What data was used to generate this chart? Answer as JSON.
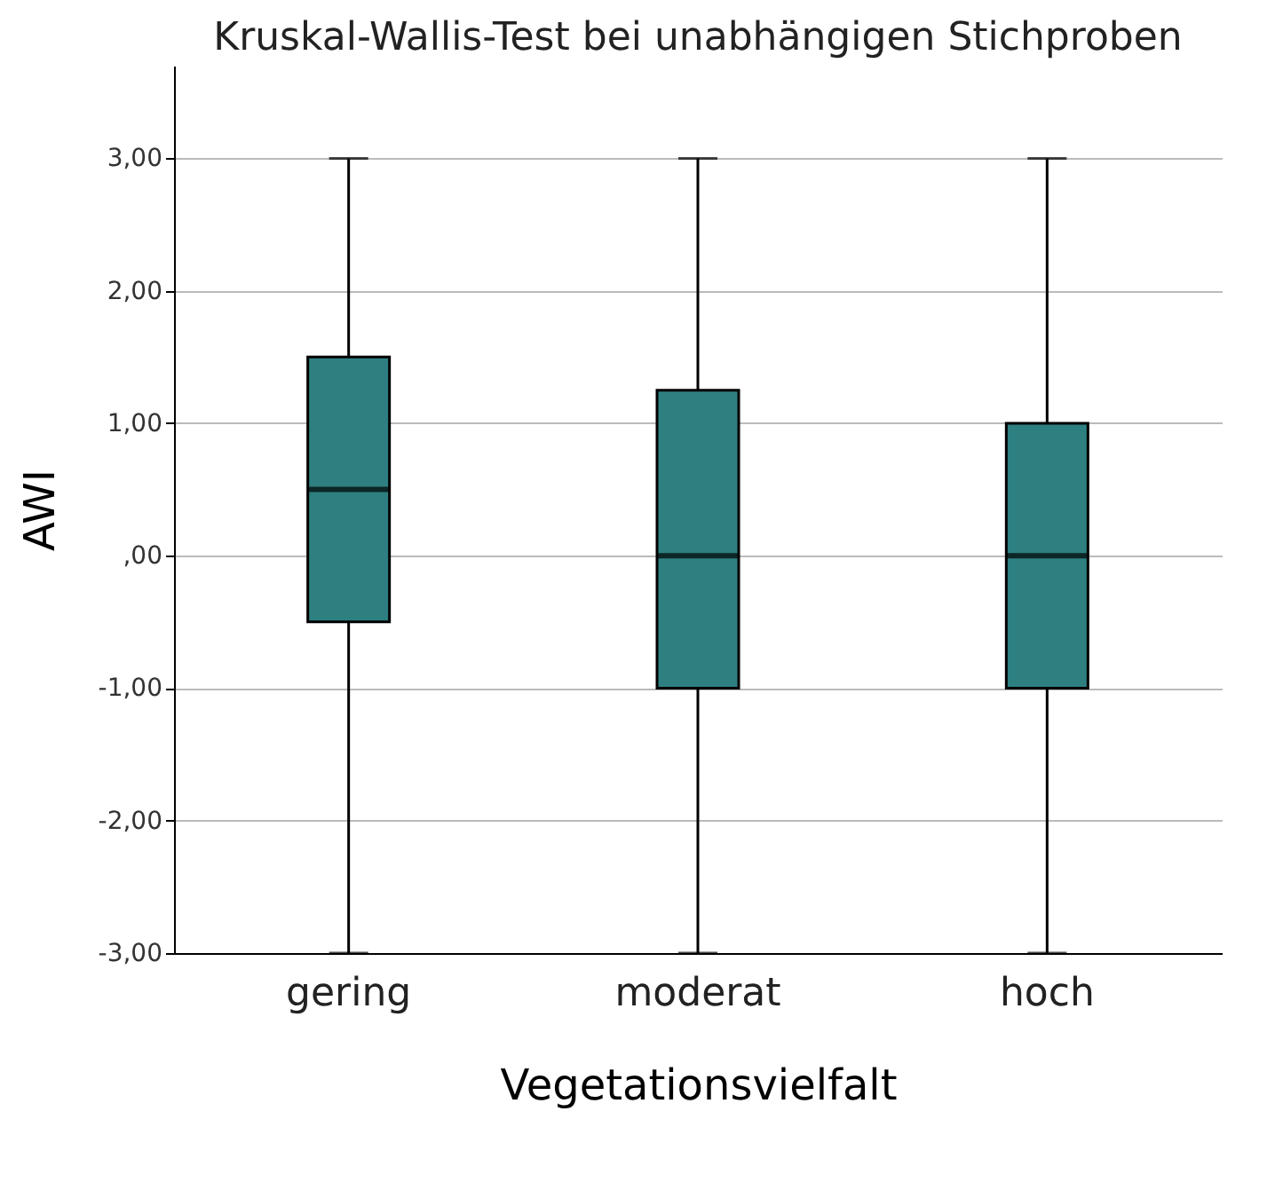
{
  "chart_data": {
    "type": "box",
    "title": "Kruskal-Wallis-Test bei unabhängigen Stichproben",
    "xlabel": "Vegetationsvielfalt",
    "ylabel": "AWI",
    "categories": [
      "gering",
      "moderat",
      "hoch"
    ],
    "series": [
      {
        "color": "#2e7f80",
        "boxes": [
          {
            "low": -3,
            "q1": -0.5,
            "median": 0.5,
            "q3": 1.5,
            "high": 3
          },
          {
            "low": -3,
            "q1": -1,
            "median": 0,
            "q3": 1.25,
            "high": 3
          },
          {
            "low": -3,
            "q1": -1,
            "median": 0,
            "q3": 1,
            "high": 3
          }
        ]
      }
    ],
    "ylim": [
      -3,
      3.7
    ],
    "yticks": [
      {
        "value": -3,
        "label": "-3,00"
      },
      {
        "value": -2,
        "label": "-2,00"
      },
      {
        "value": -1,
        "label": "-1,00"
      },
      {
        "value": 0,
        "label": ",00"
      },
      {
        "value": 1,
        "label": "1,00"
      },
      {
        "value": 2,
        "label": "2,00"
      },
      {
        "value": 3,
        "label": "3,00"
      }
    ],
    "grid": "y"
  }
}
